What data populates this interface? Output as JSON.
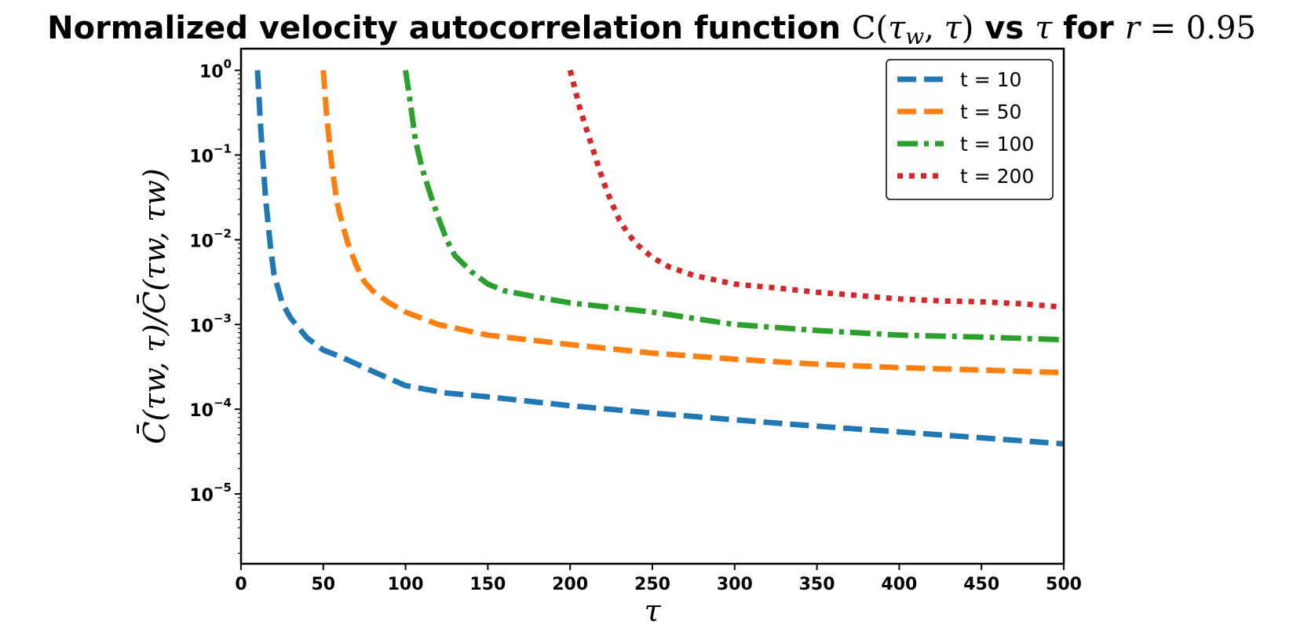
{
  "chart_data": {
    "type": "line",
    "title": "Normalized velocity autocorrelation function C̄(τw, τ) vs τ for r = 0.95",
    "title_parts": {
      "prefix": "Normalized velocity autocorrelation function ",
      "c": "C",
      "tau": "τ",
      "w": "w",
      "vs": " vs ",
      "for": " for ",
      "r": "r",
      "eq": " = 0.95"
    },
    "xlabel": "τ",
    "ylabel": "C̄(τw, τ)/C̄(τw, τw)",
    "xlim": [
      0,
      500
    ],
    "ylim": [
      1.5e-06,
      1.8
    ],
    "yscale": "log",
    "grid": false,
    "legend_position": "top-right",
    "x_ticks": [
      {
        "value": 0,
        "label": "0"
      },
      {
        "value": 50,
        "label": "50"
      },
      {
        "value": 100,
        "label": "100"
      },
      {
        "value": 150,
        "label": "150"
      },
      {
        "value": 200,
        "label": "200"
      },
      {
        "value": 250,
        "label": "250"
      },
      {
        "value": 300,
        "label": "300"
      },
      {
        "value": 350,
        "label": "350"
      },
      {
        "value": 400,
        "label": "400"
      },
      {
        "value": 450,
        "label": "450"
      },
      {
        "value": 500,
        "label": "500"
      }
    ],
    "y_ticks": [
      {
        "value": 1,
        "base": "10",
        "exp": "0"
      },
      {
        "value": 0.1,
        "base": "10",
        "exp": "−1"
      },
      {
        "value": 0.01,
        "base": "10",
        "exp": "−2"
      },
      {
        "value": 0.001,
        "base": "10",
        "exp": "−3"
      },
      {
        "value": 0.0001,
        "base": "10",
        "exp": "−4"
      },
      {
        "value": 1e-05,
        "base": "10",
        "exp": "−5"
      }
    ],
    "series": [
      {
        "name": "t = 10",
        "color": "#1f77b4",
        "style": "dashed",
        "x": [
          10,
          12,
          15,
          18,
          20,
          25,
          30,
          40,
          50,
          60,
          80,
          100,
          125,
          150,
          200,
          250,
          300,
          350,
          400,
          450,
          500
        ],
        "y": [
          1.0,
          0.2,
          0.03,
          0.008,
          0.004,
          0.0018,
          0.0012,
          0.0007,
          0.0005,
          0.00042,
          0.00028,
          0.00019,
          0.000155,
          0.00014,
          0.00011,
          9e-05,
          7.5e-05,
          6.3e-05,
          5.4e-05,
          4.6e-05,
          3.9e-05
        ]
      },
      {
        "name": "t = 50",
        "color": "#ff7f0e",
        "style": "dashed",
        "x": [
          50,
          52,
          55,
          58,
          60,
          65,
          70,
          75,
          80,
          90,
          100,
          120,
          150,
          200,
          250,
          300,
          350,
          400,
          450,
          500
        ],
        "y": [
          1.0,
          0.3,
          0.08,
          0.03,
          0.02,
          0.009,
          0.005,
          0.0032,
          0.0025,
          0.0018,
          0.0014,
          0.001,
          0.00075,
          0.00058,
          0.00046,
          0.00039,
          0.00034,
          0.00031,
          0.00029,
          0.00027
        ]
      },
      {
        "name": "t = 100",
        "color": "#2ca02c",
        "style": "dashdot",
        "x": [
          100,
          103,
          106,
          110,
          115,
          120,
          125,
          130,
          140,
          150,
          160,
          180,
          200,
          250,
          300,
          350,
          400,
          450,
          500
        ],
        "y": [
          1.0,
          0.4,
          0.15,
          0.07,
          0.035,
          0.018,
          0.01,
          0.0065,
          0.0042,
          0.003,
          0.0025,
          0.0021,
          0.0018,
          0.0014,
          0.001,
          0.00085,
          0.00075,
          0.00071,
          0.00066
        ]
      },
      {
        "name": "t = 200",
        "color": "#d62728",
        "style": "dotted",
        "x": [
          200,
          203,
          206,
          210,
          215,
          220,
          225,
          230,
          235,
          240,
          250,
          260,
          275,
          300,
          325,
          350,
          375,
          400,
          425,
          450,
          475,
          500
        ],
        "y": [
          1.0,
          0.6,
          0.35,
          0.2,
          0.1,
          0.05,
          0.028,
          0.017,
          0.012,
          0.009,
          0.0062,
          0.0048,
          0.0038,
          0.003,
          0.0027,
          0.0024,
          0.0022,
          0.002,
          0.0019,
          0.00185,
          0.00175,
          0.0016
        ]
      }
    ]
  }
}
